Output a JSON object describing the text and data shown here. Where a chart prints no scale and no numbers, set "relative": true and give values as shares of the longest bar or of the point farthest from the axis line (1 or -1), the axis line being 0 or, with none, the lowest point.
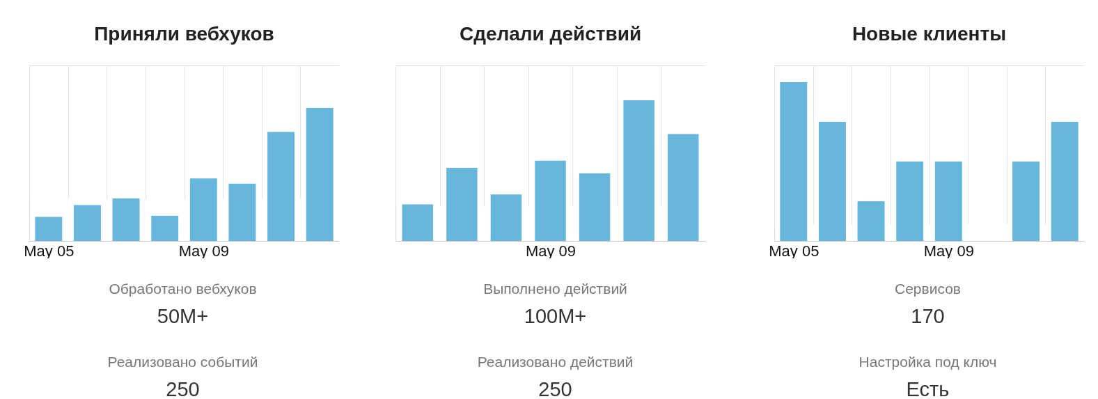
{
  "chart_data": [
    {
      "type": "bar",
      "title": "Приняли вебхуков",
      "categories": [
        "May 05",
        null,
        null,
        null,
        "May 09",
        null,
        null,
        null
      ],
      "values": [
        0.18,
        0.27,
        0.32,
        0.19,
        0.47,
        0.43,
        0.82,
        1
      ],
      "color": "#67b6dc",
      "relative": true,
      "grid": "x",
      "tick_labels": "x"
    },
    {
      "type": "bar",
      "title": "Сделали действий",
      "categories": [
        null,
        null,
        null,
        "May 09",
        null,
        null,
        null
      ],
      "values": [
        0.26,
        0.52,
        0.33,
        0.57,
        0.48,
        1,
        0.76
      ],
      "color": "#67b6dc",
      "relative": true,
      "grid": "x",
      "tick_labels": "x"
    },
    {
      "type": "bar",
      "title": "Новые клиенты",
      "categories": [
        "May 05",
        null,
        null,
        null,
        "May 09",
        null,
        null,
        null
      ],
      "values": [
        1,
        0.75,
        0.25,
        0.5,
        0.5,
        0,
        0.5,
        0.75
      ],
      "color": "#67b6dc",
      "relative": true,
      "grid": "x",
      "tick_labels": "x"
    },
    {
      "type": "other",
      "annotations": [
        "Обработано вебхуков",
        "50M+",
        "Реализовано событий",
        "250"
      ]
    },
    {
      "type": "other",
      "annotations": [
        "Выполнено действий",
        "100M+",
        "Реализовано действий",
        "250"
      ]
    },
    {
      "type": "other",
      "annotations": [
        "Сервисов",
        "170",
        "Настройка под ключ",
        "Есть"
      ]
    }
  ]
}
